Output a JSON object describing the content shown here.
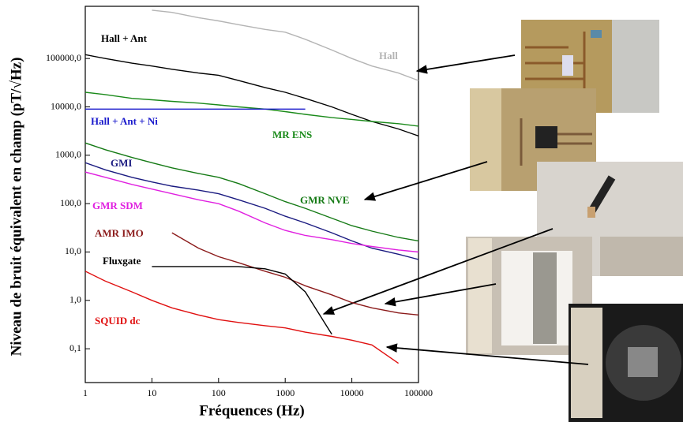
{
  "chart_data": {
    "type": "line",
    "xlabel": "Fréquences (Hz)",
    "ylabel": "Niveau de bruit équivalent en champ (pT/√Hz)",
    "xscale": "log",
    "yscale": "log",
    "grid": false,
    "xlim": [
      1,
      100000
    ],
    "xticks": [
      1,
      10,
      100,
      1000,
      10000,
      100000
    ],
    "ylim": [
      0.02,
      1200000
    ],
    "yticks": [
      {
        "value": 0.1,
        "label": "0,1"
      },
      {
        "value": 1,
        "label": "1,0"
      },
      {
        "value": 10,
        "label": "10,0"
      },
      {
        "value": 100,
        "label": "100,0"
      },
      {
        "value": 1000,
        "label": "1000,0"
      },
      {
        "value": 10000,
        "label": "10000,0"
      },
      {
        "value": 100000,
        "label": "100000,0"
      }
    ],
    "x": [
      1,
      2,
      5,
      10,
      20,
      50,
      100,
      200,
      500,
      1000,
      2000,
      5000,
      10000,
      20000,
      50000,
      100000
    ],
    "series": [
      {
        "name": "Hall",
        "color": "#b4b4b4",
        "values": [
          null,
          null,
          null,
          1000000,
          900000,
          700000,
          600000,
          500000,
          400000,
          350000,
          250000,
          150000,
          100000,
          70000,
          50000,
          35000
        ]
      },
      {
        "name": "Hall + Ant",
        "color": "#000000",
        "values": [
          120000,
          100000,
          80000,
          70000,
          60000,
          50000,
          45000,
          35000,
          25000,
          20000,
          15000,
          10000,
          7000,
          5000,
          3500,
          2500
        ]
      },
      {
        "name": "MR ENS",
        "color": "#1a8a1a",
        "values": [
          20000,
          18000,
          15000,
          14000,
          13000,
          12000,
          11000,
          10000,
          9000,
          8000,
          7000,
          6000,
          5500,
          5000,
          4500,
          4000
        ]
      },
      {
        "name": "Hall + Ant + Ni",
        "color": "#1a1acc",
        "values": [
          9000,
          9000,
          9000,
          9000,
          9000,
          9000,
          9000,
          9000,
          9000,
          9000,
          9000,
          null,
          null,
          null,
          null,
          null
        ]
      },
      {
        "name": "GMI",
        "color": "#1a1a80",
        "values": [
          700,
          500,
          350,
          280,
          230,
          190,
          160,
          120,
          80,
          55,
          40,
          25,
          17,
          12,
          9,
          7
        ]
      },
      {
        "name": "GMR NVE",
        "color": "#157a15",
        "values": [
          1800,
          1300,
          900,
          700,
          550,
          420,
          350,
          260,
          160,
          110,
          80,
          50,
          35,
          27,
          20,
          17
        ]
      },
      {
        "name": "GMR SDM",
        "color": "#e020e0",
        "values": [
          450,
          350,
          250,
          200,
          160,
          120,
          100,
          70,
          40,
          28,
          22,
          18,
          15,
          13,
          11,
          10
        ]
      },
      {
        "name": "AMR IMO",
        "color": "#8b1a1a",
        "values": [
          null,
          null,
          null,
          null,
          25,
          12,
          8,
          6,
          4,
          3,
          2,
          1.3,
          0.9,
          0.7,
          0.55,
          0.5
        ]
      },
      {
        "name": "Fluxgate",
        "color": "#000000",
        "values": [
          null,
          null,
          null,
          5,
          5,
          5,
          5,
          5,
          4.5,
          3.5,
          1.5,
          0.2,
          null,
          null,
          null,
          null
        ]
      },
      {
        "name": "SQUID dc",
        "color": "#e01010",
        "values": [
          4,
          2.5,
          1.5,
          1,
          0.7,
          0.5,
          0.4,
          0.35,
          0.3,
          0.27,
          0.22,
          0.18,
          0.15,
          0.12,
          0.05,
          null
        ]
      }
    ]
  }
}
